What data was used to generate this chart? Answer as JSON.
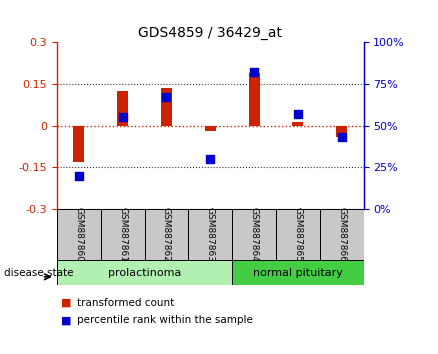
{
  "title": "GDS4859 / 36429_at",
  "samples": [
    "GSM887860",
    "GSM887861",
    "GSM887862",
    "GSM887863",
    "GSM887864",
    "GSM887865",
    "GSM887866"
  ],
  "transformed_count": [
    -0.132,
    0.125,
    0.135,
    -0.018,
    0.19,
    0.012,
    -0.042
  ],
  "percentile_rank_pct": [
    20,
    55,
    67,
    30,
    82,
    57,
    43
  ],
  "ylim_left": [
    -0.3,
    0.3
  ],
  "ylim_right": [
    0,
    100
  ],
  "yticks_left": [
    -0.3,
    -0.15,
    0.0,
    0.15,
    0.3
  ],
  "ytick_labels_left": [
    "-0.3",
    "-0.15",
    "0",
    "0.15",
    "0.3"
  ],
  "yticks_right": [
    0,
    25,
    50,
    75,
    100
  ],
  "ytick_labels_right": [
    "0%",
    "25%",
    "50%",
    "75%",
    "100%"
  ],
  "hline_dotted": [
    -0.15,
    0.15
  ],
  "zero_line_y": 0.0,
  "disease_groups": [
    {
      "label": "prolactinoma",
      "indices": [
        0,
        1,
        2,
        3
      ],
      "color": "#b2f0b2"
    },
    {
      "label": "normal pituitary",
      "indices": [
        4,
        5,
        6
      ],
      "color": "#44cc44"
    }
  ],
  "bar_color": "#cc2200",
  "dot_color": "#0000cc",
  "bar_width": 0.25,
  "dot_size": 30,
  "sample_box_color": "#c8c8c8",
  "left_axis_color": "#cc2200",
  "right_axis_color": "#0000cc",
  "label_transformed": "transformed count",
  "label_percentile": "percentile rank within the sample",
  "disease_state_label": "disease state",
  "zero_line_color": "#cc2200",
  "dotted_line_color": "#333333",
  "title_fontsize": 10,
  "tick_fontsize": 8,
  "sample_fontsize": 6.5,
  "disease_fontsize": 8,
  "legend_fontsize": 7.5
}
